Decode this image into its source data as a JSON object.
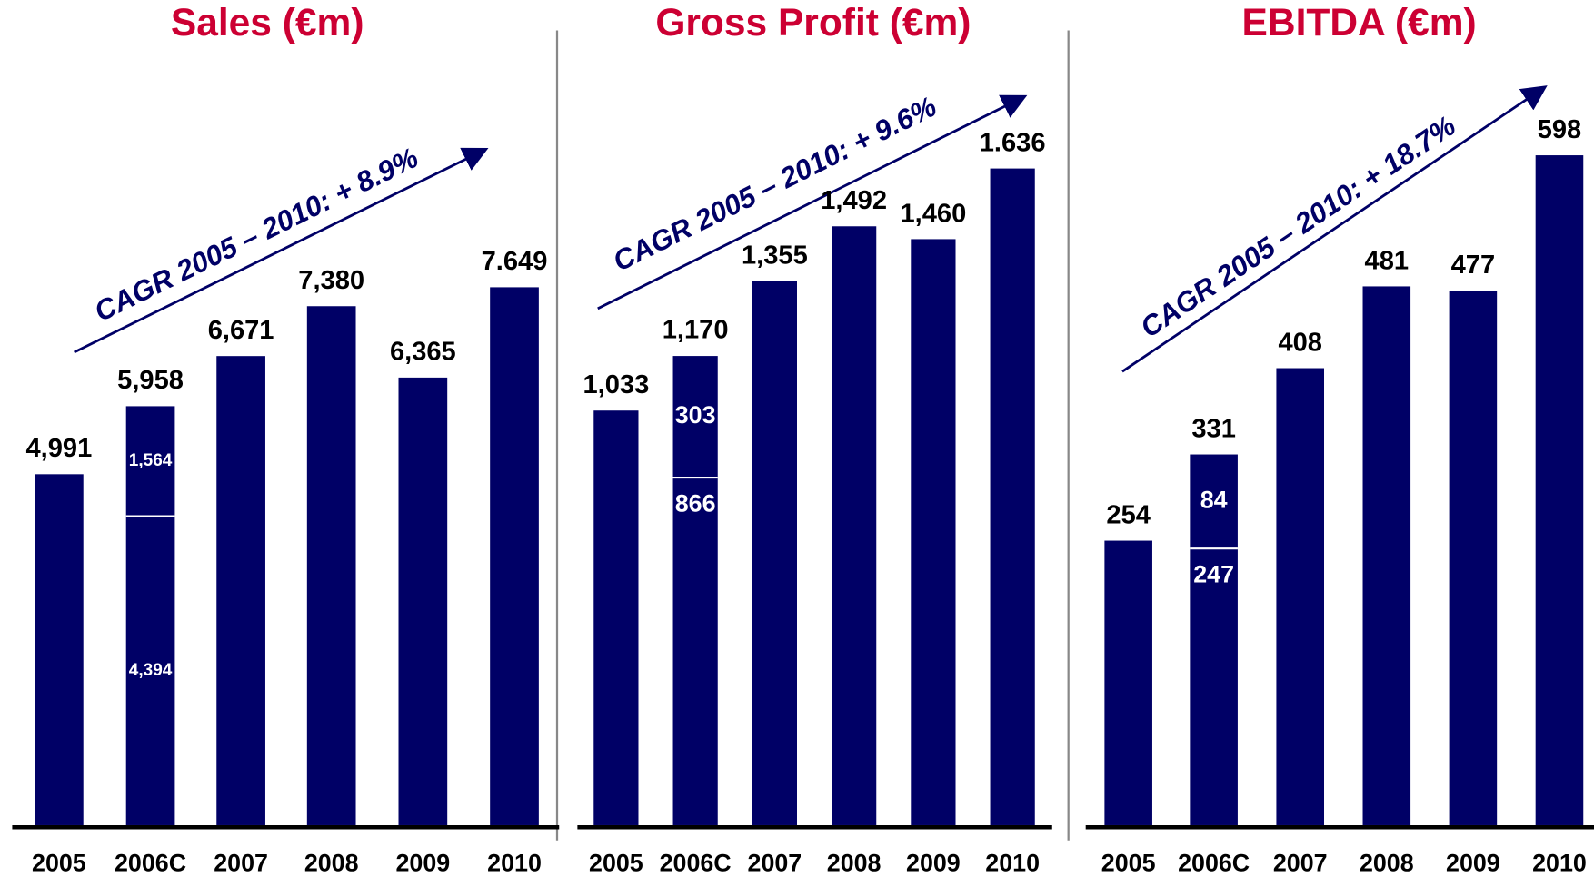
{
  "chart_data": [
    {
      "type": "bar",
      "title": "Sales (€m)",
      "annotation": "CAGR 2005 – 2010: + 8.9%",
      "categories": [
        "2005",
        "2006C",
        "2007",
        "2008",
        "2009",
        "2010"
      ],
      "totals": [
        4991,
        5958,
        6671,
        7380,
        6365,
        7649
      ],
      "total_labels": [
        "4,991",
        "5,958",
        "6,671",
        "7,380",
        "6,365",
        "7.649"
      ],
      "series": [
        {
          "color": "#000066",
          "values": [
            4991,
            4394,
            6671,
            7380,
            6365,
            7649
          ],
          "value_labels": [
            null,
            "4,394",
            null,
            null,
            null,
            null
          ]
        },
        {
          "color": "#000066",
          "values": [
            null,
            1564,
            null,
            null,
            null,
            null
          ],
          "value_labels": [
            null,
            "1,564",
            null,
            null,
            null,
            null
          ]
        }
      ]
    },
    {
      "type": "bar",
      "title": "Gross Profit (€m)",
      "annotation": "CAGR 2005 – 2010: + 9.6%",
      "categories": [
        "2005",
        "2006C",
        "2007",
        "2008",
        "2009",
        "2010"
      ],
      "totals": [
        1033,
        1170,
        1355,
        1492,
        1460,
        1636
      ],
      "total_labels": [
        "1,033",
        "1,170",
        "1,355",
        "1,492",
        "1,460",
        "1.636"
      ],
      "series": [
        {
          "color": "#000066",
          "values": [
            1033,
            866,
            1355,
            1492,
            1460,
            1636
          ],
          "value_labels": [
            null,
            "866",
            null,
            null,
            null,
            null
          ]
        },
        {
          "color": "#000066",
          "values": [
            null,
            303,
            null,
            null,
            null,
            null
          ],
          "value_labels": [
            null,
            "303",
            null,
            null,
            null,
            null
          ]
        }
      ]
    },
    {
      "type": "bar",
      "title": "EBITDA (€m)",
      "annotation": "CAGR 2005 – 2010: + 18.7%",
      "categories": [
        "2005",
        "2006C",
        "2007",
        "2008",
        "2009",
        "2010"
      ],
      "totals": [
        254,
        331,
        408,
        481,
        477,
        598
      ],
      "total_labels": [
        "254",
        "331",
        "408",
        "481",
        "477",
        "598"
      ],
      "series": [
        {
          "color": "#000066",
          "values": [
            254,
            247,
            408,
            481,
            477,
            598
          ],
          "value_labels": [
            null,
            "247",
            null,
            null,
            null,
            null
          ]
        },
        {
          "color": "#000066",
          "values": [
            null,
            84,
            null,
            null,
            null,
            null
          ],
          "value_labels": [
            null,
            "84",
            null,
            null,
            null,
            null
          ]
        }
      ]
    }
  ]
}
